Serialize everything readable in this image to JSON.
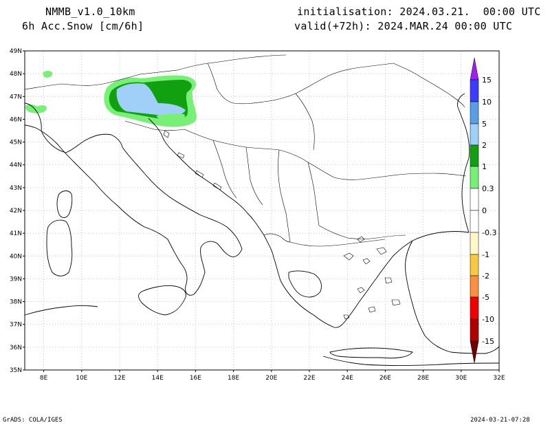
{
  "header": {
    "model": "NMMB_v1.0_10km",
    "field": "6h Acc.Snow [cm/6h]",
    "init": "initialisation: 2024.03.21.  00:00 UTC",
    "valid": "valid(+72h): 2024.MAR.24 00:00 UTC"
  },
  "footer": {
    "left": "GrADS: COLA/IGES",
    "right": "2024-03-21-07:28"
  },
  "map": {
    "lon_range": [
      7,
      32
    ],
    "lat_range": [
      35,
      49
    ],
    "lat_labels": [
      "49N",
      "48N",
      "47N",
      "46N",
      "45N",
      "44N",
      "43N",
      "42N",
      "41N",
      "40N",
      "39N",
      "38N",
      "37N",
      "36N",
      "35N"
    ],
    "lon_labels": [
      "8E",
      "10E",
      "12E",
      "14E",
      "16E",
      "18E",
      "20E",
      "22E",
      "24E",
      "26E",
      "28E",
      "30E",
      "32E"
    ],
    "grid": "dotted"
  },
  "colorbar": {
    "labels": [
      "15",
      "10",
      "5",
      "2",
      "1",
      "0.3",
      "0",
      "-0.3",
      "-1",
      "-2",
      "-5",
      "-10",
      "-15"
    ],
    "colors": {
      "gt15": "#a020f0",
      "c10_15": "#3c3cff",
      "c5_10": "#5a9ee6",
      "c2_5": "#a0d0f8",
      "c1_2": "#10a010",
      "c03_1": "#78f078",
      "c0_03": "#ffffff",
      "cn03_0": "#ffffff",
      "cn1_n03": "#fff8c8",
      "cn2_n1": "#f8c840",
      "cn5_n2": "#f89040",
      "cn10_n5": "#f00000",
      "cn15_n10": "#b00000",
      "ltn15": "#700000"
    }
  }
}
